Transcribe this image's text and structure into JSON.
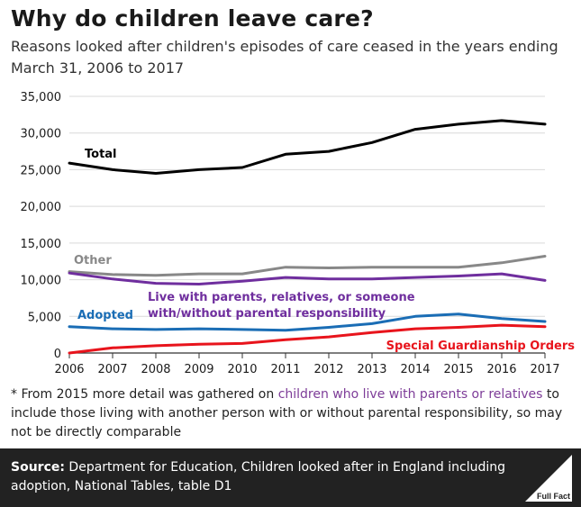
{
  "title": "Why do children leave care?",
  "subtitle": "Reasons looked after children's episodes of care ceased in the years ending March 31, 2006 to 2017",
  "chart_data": {
    "type": "line",
    "x": [
      2006,
      2007,
      2008,
      2009,
      2010,
      2011,
      2012,
      2013,
      2014,
      2015,
      2016,
      2017
    ],
    "xticks": [
      "2006",
      "2007",
      "2008",
      "2009",
      "2010",
      "2011",
      "2012",
      "2013",
      "2014",
      "2015",
      "2016",
      "2017"
    ],
    "yticks": [
      "0",
      "5,000",
      "10,000",
      "15,000",
      "20,000",
      "25,000",
      "30,000",
      "35,000"
    ],
    "ylim": [
      0,
      35000
    ],
    "grid": true,
    "series": [
      {
        "name": "Total",
        "color": "#000000",
        "values": [
          25900,
          25000,
          24500,
          25000,
          25300,
          27100,
          27500,
          28700,
          30500,
          31200,
          31700,
          31200
        ]
      },
      {
        "name": "Other",
        "color": "#888888",
        "values": [
          11100,
          10700,
          10600,
          10800,
          10800,
          11700,
          11600,
          11700,
          11700,
          11700,
          12300,
          13200
        ]
      },
      {
        "name": "Live with parents, relatives, or someone with/without parental responsibility",
        "color": "#6f2e9e",
        "values": [
          10900,
          10100,
          9500,
          9400,
          9800,
          10300,
          10100,
          10100,
          10300,
          10500,
          10800,
          9900
        ]
      },
      {
        "name": "Adopted",
        "color": "#1a6db5",
        "values": [
          3600,
          3300,
          3200,
          3300,
          3200,
          3100,
          3500,
          4000,
          5000,
          5300,
          4700,
          4300
        ]
      },
      {
        "name": "Special Guardianship Orders",
        "color": "#e8141c",
        "values": [
          0,
          700,
          1000,
          1200,
          1300,
          1800,
          2200,
          2800,
          3300,
          3500,
          3800,
          3600
        ]
      }
    ],
    "labels": {
      "total": "Total",
      "other": "Other",
      "live_line1": "Live with parents, relatives, or someone",
      "live_line2": "with/without parental responsibility",
      "adopted": "Adopted",
      "sgo": "Special Guardianship Orders"
    }
  },
  "note": {
    "prefix": "* From 2015 more detail was gathered on ",
    "link": "children who live with parents or relatives",
    "suffix": " to include those living with another person with or without parental responsibility, so may not be directly comparable"
  },
  "footer": {
    "source_label": "Source:",
    "source_text": " Department for Education, Children looked after in England including adoption, National Tables, table D1",
    "logo_text": "Full Fact"
  }
}
